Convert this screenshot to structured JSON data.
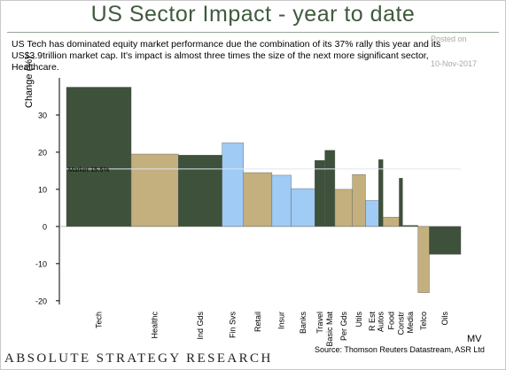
{
  "header": {
    "title": "US Sector Impact - year to date",
    "commentary": "US Tech has dominated equity market performance due the combination of its 37% rally this year and its US$3.9trillion market cap.  It's impact is almost three times the size of the next more significant sector, Healthcare.",
    "posted_label": "Posted on",
    "posted_date": "10-Nov-2017"
  },
  "footer": {
    "brand": "ABSOLUTE STRATEGY RESEARCH",
    "source": "Source: Thomson Reuters Datastream, ASR Ltd"
  },
  "colors": {
    "dark_green": "#3e513a",
    "tan": "#c3b07e",
    "light_blue": "#9fcbf5",
    "market_line": "#dde6f0",
    "title": "#3f5a3d"
  },
  "chart_data": {
    "type": "bar",
    "subtype": "variable-width (Marimekko style)",
    "title": "",
    "ylabel": "Change (%)",
    "xlabel": "MV",
    "ylim": [
      -21,
      40
    ],
    "yticks": [
      -20,
      -10,
      0,
      10,
      20,
      30
    ],
    "grid": false,
    "reference_line": {
      "label": "Market 15.5%",
      "value": 15.5
    },
    "categories": [
      "Tech",
      "Healthc",
      "Ind Gds",
      "Fin Svs",
      "Retail",
      "Insur",
      "Banks",
      "Travel",
      "Basic Mat",
      "Per Gds",
      "Utils",
      "R Est",
      "Autos",
      "Food",
      "Constr",
      "Media",
      "Telco",
      "Oils"
    ],
    "values": [
      37.5,
      19.5,
      19.2,
      22.5,
      14.5,
      13.8,
      10.2,
      17.8,
      20.5,
      10.0,
      14.0,
      7.0,
      18.0,
      2.5,
      13.0,
      0.3,
      -17.8,
      -7.5
    ],
    "market_cap_weights": [
      14.8,
      10.8,
      10.0,
      4.9,
      6.5,
      4.4,
      5.4,
      2.3,
      2.3,
      4.0,
      3.0,
      3.0,
      1.0,
      3.7,
      0.8,
      3.5,
      2.6,
      7.2
    ],
    "bar_colors": [
      "dark_green",
      "tan",
      "dark_green",
      "light_blue",
      "tan",
      "light_blue",
      "light_blue",
      "dark_green",
      "dark_green",
      "tan",
      "tan",
      "light_blue",
      "dark_green",
      "tan",
      "dark_green",
      "dark_green",
      "tan",
      "dark_green"
    ]
  }
}
